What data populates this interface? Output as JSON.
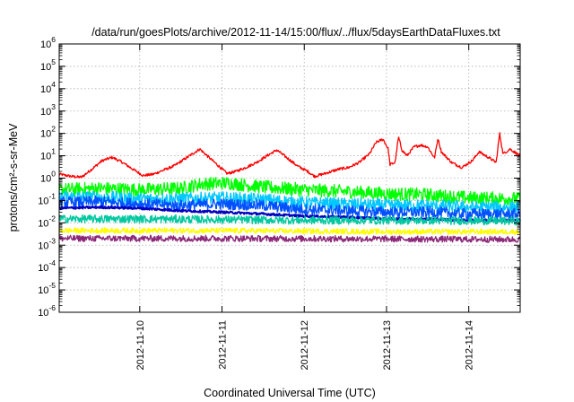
{
  "chart_data": {
    "type": "line",
    "title": "/data/run/goesPlots/archive/2012-11-14/15:00/flux/../flux/5daysEarthDataFluxes.txt",
    "xlabel": "Coordinated Universal Time (UTC)",
    "ylabel": "protons/cm²-s-sr-MeV",
    "x_scale": "time",
    "xlim": [
      "2012-11-09T00:30:00",
      "2012-11-14T15:00:00"
    ],
    "y_scale": "log",
    "ylim": [
      1e-06,
      1000000.0
    ],
    "x_ticks": [
      "2012-11-10",
      "2012-11-11",
      "2012-11-12",
      "2012-11-13",
      "2012-11-14"
    ],
    "y_ticks": [
      {
        "value": 1e-06,
        "base": "10",
        "exp": "-6"
      },
      {
        "value": 1e-05,
        "base": "10",
        "exp": "-5"
      },
      {
        "value": 0.0001,
        "base": "10",
        "exp": "-4"
      },
      {
        "value": 0.001,
        "base": "10",
        "exp": "-3"
      },
      {
        "value": 0.01,
        "base": "10",
        "exp": "-2"
      },
      {
        "value": 0.1,
        "base": "10",
        "exp": "-1"
      },
      {
        "value": 1,
        "base": "10",
        "exp": "0"
      },
      {
        "value": 10,
        "base": "10",
        "exp": "1"
      },
      {
        "value": 100,
        "base": "10",
        "exp": "2"
      },
      {
        "value": 1000,
        "base": "10",
        "exp": "3"
      },
      {
        "value": 10000,
        "base": "10",
        "exp": "4"
      },
      {
        "value": 100000,
        "base": "10",
        "exp": "5"
      },
      {
        "value": 1000000,
        "base": "10",
        "exp": "6"
      }
    ],
    "grid": true,
    "legend": "none",
    "series": [
      {
        "color": "#ff0000",
        "noise": 0.06,
        "points": [
          [
            "2012-11-09T00:30",
            1.5
          ],
          [
            "2012-11-09T04:00",
            1.2
          ],
          [
            "2012-11-09T07:00",
            1.1
          ],
          [
            "2012-11-09T10:00",
            2.5
          ],
          [
            "2012-11-09T13:00",
            6
          ],
          [
            "2012-11-09T16:00",
            8.5
          ],
          [
            "2012-11-09T19:00",
            5
          ],
          [
            "2012-11-09T22:00",
            2.5
          ],
          [
            "2012-11-10T01:00",
            1.3
          ],
          [
            "2012-11-10T04:00",
            1.5
          ],
          [
            "2012-11-10T07:00",
            2.3
          ],
          [
            "2012-11-10T10:00",
            3.5
          ],
          [
            "2012-11-10T13:00",
            7
          ],
          [
            "2012-11-10T16:00",
            14
          ],
          [
            "2012-11-10T17:30",
            20
          ],
          [
            "2012-11-10T20:00",
            9
          ],
          [
            "2012-11-10T23:00",
            3.5
          ],
          [
            "2012-11-11T01:30",
            1.6
          ],
          [
            "2012-11-11T04:00",
            2
          ],
          [
            "2012-11-11T07:00",
            3
          ],
          [
            "2012-11-11T10:00",
            5
          ],
          [
            "2012-11-11T14:00",
            12
          ],
          [
            "2012-11-11T16:00",
            18
          ],
          [
            "2012-11-11T19:00",
            8
          ],
          [
            "2012-11-11T22:00",
            3.5
          ],
          [
            "2012-11-12T01:00",
            2
          ],
          [
            "2012-11-12T03:00",
            1.2
          ],
          [
            "2012-11-12T06:00",
            1.6
          ],
          [
            "2012-11-12T10:00",
            2.5
          ],
          [
            "2012-11-12T13:00",
            3
          ],
          [
            "2012-11-12T16:00",
            5
          ],
          [
            "2012-11-12T19:00",
            12
          ],
          [
            "2012-11-12T21:00",
            40
          ],
          [
            "2012-11-12T23:00",
            55
          ],
          [
            "2012-11-13T00:30",
            20
          ],
          [
            "2012-11-13T01:00",
            4
          ],
          [
            "2012-11-13T02:30",
            5
          ],
          [
            "2012-11-13T03:30",
            70
          ],
          [
            "2012-11-13T04:30",
            18
          ],
          [
            "2012-11-13T06:00",
            10
          ],
          [
            "2012-11-13T08:00",
            25
          ],
          [
            "2012-11-13T10:00",
            30
          ],
          [
            "2012-11-13T12:00",
            25
          ],
          [
            "2012-11-13T14:00",
            8
          ],
          [
            "2012-11-13T15:00",
            60
          ],
          [
            "2012-11-13T16:00",
            15
          ],
          [
            "2012-11-13T19:00",
            5
          ],
          [
            "2012-11-13T22:00",
            3
          ],
          [
            "2012-11-14T01:00",
            6
          ],
          [
            "2012-11-14T03:00",
            15
          ],
          [
            "2012-11-14T06:00",
            8
          ],
          [
            "2012-11-14T08:00",
            5
          ],
          [
            "2012-11-14T09:00",
            100
          ],
          [
            "2012-11-14T10:00",
            12
          ],
          [
            "2012-11-14T12:00",
            20
          ],
          [
            "2012-11-14T15:00",
            10
          ]
        ]
      },
      {
        "color": "#00ff00",
        "noise": 0.3,
        "points": [
          [
            "2012-11-09T00:30",
            0.3
          ],
          [
            "2012-11-09T12:00",
            0.35
          ],
          [
            "2012-11-10T00:00",
            0.3
          ],
          [
            "2012-11-10T12:00",
            0.35
          ],
          [
            "2012-11-10T18:00",
            0.55
          ],
          [
            "2012-11-11T02:00",
            0.6
          ],
          [
            "2012-11-11T12:00",
            0.4
          ],
          [
            "2012-11-12T00:00",
            0.3
          ],
          [
            "2012-11-12T12:00",
            0.25
          ],
          [
            "2012-11-13T00:00",
            0.2
          ],
          [
            "2012-11-13T12:00",
            0.18
          ],
          [
            "2012-11-14T00:00",
            0.13
          ],
          [
            "2012-11-14T15:00",
            0.12
          ]
        ]
      },
      {
        "color": "#00c8ff",
        "noise": 0.28,
        "points": [
          [
            "2012-11-09T00:30",
            0.15
          ],
          [
            "2012-11-09T12:00",
            0.14
          ],
          [
            "2012-11-10T00:00",
            0.12
          ],
          [
            "2012-11-10T12:00",
            0.12
          ],
          [
            "2012-11-11T00:00",
            0.13
          ],
          [
            "2012-11-11T12:00",
            0.11
          ],
          [
            "2012-11-12T00:00",
            0.08
          ],
          [
            "2012-11-12T12:00",
            0.07
          ],
          [
            "2012-11-13T00:00",
            0.06
          ],
          [
            "2012-11-13T12:00",
            0.06
          ],
          [
            "2012-11-14T00:00",
            0.05
          ],
          [
            "2012-11-14T15:00",
            0.05
          ]
        ]
      },
      {
        "color": "#0050ff",
        "noise": 0.25,
        "points": [
          [
            "2012-11-09T00:30",
            0.08
          ],
          [
            "2012-11-09T12:00",
            0.09
          ],
          [
            "2012-11-10T00:00",
            0.07
          ],
          [
            "2012-11-10T12:00",
            0.06
          ],
          [
            "2012-11-11T00:00",
            0.07
          ],
          [
            "2012-11-11T12:00",
            0.06
          ],
          [
            "2012-11-12T00:00",
            0.04
          ],
          [
            "2012-11-12T12:00",
            0.035
          ],
          [
            "2012-11-13T00:00",
            0.03
          ],
          [
            "2012-11-13T12:00",
            0.03
          ],
          [
            "2012-11-14T00:00",
            0.025
          ],
          [
            "2012-11-14T15:00",
            0.025
          ]
        ]
      },
      {
        "color": "#0000c0",
        "noise": 0.05,
        "points": [
          [
            "2012-11-09T00:30",
            0.045
          ],
          [
            "2012-11-09T12:00",
            0.05
          ],
          [
            "2012-11-10T00:00",
            0.045
          ],
          [
            "2012-11-10T12:00",
            0.035
          ],
          [
            "2012-11-11T00:00",
            0.03
          ],
          [
            "2012-11-11T12:00",
            0.025
          ],
          [
            "2012-11-12T00:00",
            0.02
          ],
          [
            "2012-11-12T12:00",
            0.018
          ],
          [
            "2012-11-13T00:00",
            0.015
          ],
          [
            "2012-11-13T12:00",
            0.015
          ],
          [
            "2012-11-14T00:00",
            0.013
          ],
          [
            "2012-11-14T15:00",
            0.013
          ]
        ]
      },
      {
        "color": "#00c8a0",
        "noise": 0.18,
        "points": [
          [
            "2012-11-09T00:30",
            0.015
          ],
          [
            "2012-11-10T00:00",
            0.015
          ],
          [
            "2012-11-11T00:00",
            0.014
          ],
          [
            "2012-11-12T00:00",
            0.013
          ],
          [
            "2012-11-13T00:00",
            0.013
          ],
          [
            "2012-11-14T15:00",
            0.012
          ]
        ]
      },
      {
        "color": "#ffff00",
        "noise": 0.12,
        "points": [
          [
            "2012-11-09T00:30",
            0.0045
          ],
          [
            "2012-11-11T00:00",
            0.0045
          ],
          [
            "2012-11-13T00:00",
            0.004
          ],
          [
            "2012-11-14T15:00",
            0.004
          ]
        ]
      },
      {
        "color": "#8c2878",
        "noise": 0.14,
        "points": [
          [
            "2012-11-09T00:30",
            0.002
          ],
          [
            "2012-11-11T00:00",
            0.002
          ],
          [
            "2012-11-13T00:00",
            0.0019
          ],
          [
            "2012-11-14T15:00",
            0.0018
          ]
        ]
      }
    ]
  }
}
